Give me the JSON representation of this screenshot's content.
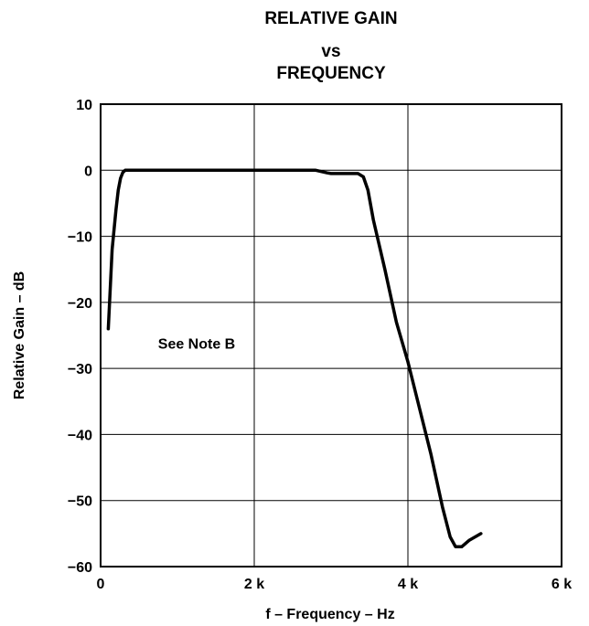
{
  "chart_data": {
    "type": "line",
    "title": [
      "RELATIVE GAIN",
      "vs",
      "FREQUENCY"
    ],
    "xlabel": "f – Frequency – Hz",
    "ylabel": "Relative Gain – dB",
    "xlim": [
      0,
      6000
    ],
    "ylim": [
      -60,
      10
    ],
    "x_ticks": [
      0,
      2000,
      4000,
      6000
    ],
    "x_tick_labels": [
      "0",
      "2 k",
      "4 k",
      "6 k"
    ],
    "y_ticks": [
      10,
      0,
      -10,
      -20,
      -30,
      -40,
      -50,
      -60
    ],
    "y_tick_labels": [
      "10",
      "0",
      "−10",
      "−20",
      "−30",
      "−40",
      "−50",
      "−60"
    ],
    "grid": true,
    "annotation": "See Note B",
    "series": [
      {
        "x": [
          100,
          150,
          200,
          230,
          260,
          290,
          320,
          400,
          1000,
          2000,
          2800,
          2950,
          3000,
          3350,
          3420,
          3480,
          3550,
          3700,
          3850,
          4000,
          4150,
          4300,
          4450,
          4550,
          4620,
          4700,
          4800,
          4950
        ],
        "y": [
          -24,
          -12,
          -6,
          -3,
          -1.2,
          -0.3,
          0,
          0,
          0,
          0,
          0,
          -0.4,
          -0.5,
          -0.5,
          -1,
          -3,
          -7.5,
          -15,
          -23,
          -29,
          -36,
          -43,
          -51,
          -55.5,
          -57,
          -57,
          -56,
          -55
        ]
      }
    ],
    "colors": {
      "line": "#000000",
      "grid": "#000000"
    }
  }
}
